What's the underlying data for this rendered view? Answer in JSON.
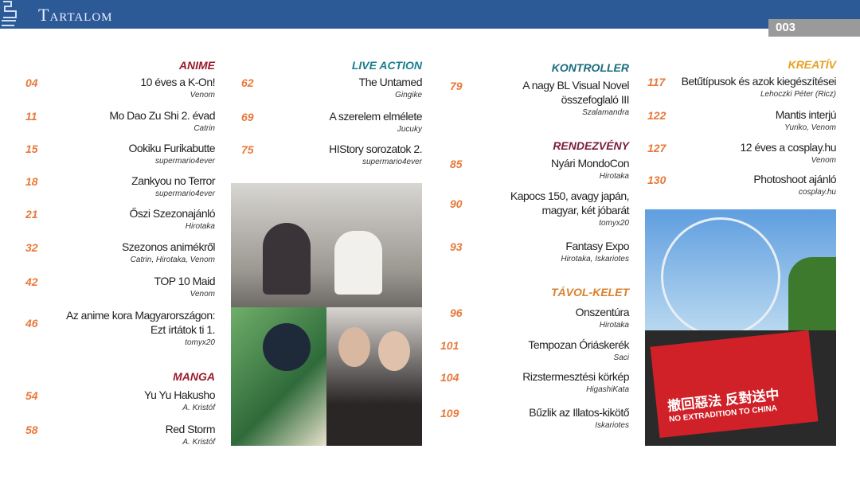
{
  "header": {
    "title": "Tartalom",
    "page": "003",
    "color": "#2b5a97"
  },
  "colors": {
    "number": "#e8793a",
    "anime": "#9b1c2e",
    "manga": "#9b1c2e",
    "live_action": "#1a7f8e",
    "kontroller": "#1a6c7c",
    "rendezveny": "#7a1d3a",
    "tavol_kelet": "#d9822b",
    "kreativ": "#e8a020"
  },
  "columns": [
    [
      {
        "section": "ANIME",
        "color": "#9b1c2e"
      },
      {
        "num": "04",
        "title": [
          "10 éves a K-On!"
        ],
        "author": "Venom"
      },
      {
        "num": "11",
        "title": [
          "Mo Dao Zu Shi 2. évad"
        ],
        "author": "Catrin"
      },
      {
        "num": "15",
        "title": [
          "Ookiku Furikabutte"
        ],
        "author": "supermario4ever"
      },
      {
        "num": "18",
        "title": [
          "Zankyou no Terror"
        ],
        "author": "supermario4ever"
      },
      {
        "num": "21",
        "title": [
          "Őszi Szezonajánló"
        ],
        "author": "Hirotaka"
      },
      {
        "num": "32",
        "title": [
          "Szezonos animékről"
        ],
        "author": "Catrin, Hirotaka, Venom"
      },
      {
        "num": "42",
        "title": [
          "TOP 10 Maid"
        ],
        "author": "Venom"
      },
      {
        "num": "46",
        "title": [
          "Az anime kora Magyarországon:",
          "Ezt írtátok ti 1."
        ],
        "author": "tomyx20"
      },
      {
        "section": "MANGA",
        "color": "#9b1c2e"
      },
      {
        "num": "54",
        "title": [
          "Yu Yu Hakusho"
        ],
        "author": "A. Kristóf"
      },
      {
        "num": "58",
        "title": [
          "Red Storm"
        ],
        "author": "A. Kristóf"
      }
    ],
    [
      {
        "section": "LIVE ACTION",
        "color": "#1a7f8e"
      },
      {
        "num": "62",
        "title": [
          "The Untamed"
        ],
        "author": "Gingike"
      },
      {
        "num": "69",
        "title": [
          "A szerelem elmélete"
        ],
        "author": "Jucuky"
      },
      {
        "num": "75",
        "title": [
          "HIStory sorozatok 2."
        ],
        "author": "supermario4ever"
      }
    ],
    [
      {
        "section": "KONTROLLER",
        "color": "#1a6c7c"
      },
      {
        "num": "79",
        "title": [
          "A nagy BL Visual Novel",
          "összefoglaló III"
        ],
        "author": "Szalamandra"
      },
      {
        "section": "RENDEZVÉNY",
        "color": "#7a1d3a"
      },
      {
        "num": "85",
        "title": [
          "Nyári MondoCon"
        ],
        "author": "Hirotaka"
      },
      {
        "num": "90",
        "title": [
          "Kapocs 150, avagy japán,",
          "magyar, két jóbarát"
        ],
        "author": "tomyx20"
      },
      {
        "num": "93",
        "title": [
          "Fantasy Expo"
        ],
        "author": "Hirotaka, Iskariotes"
      },
      {
        "section": "TÁVOL-KELET",
        "color": "#d9822b"
      },
      {
        "num": "96",
        "title": [
          "Onszentúra"
        ],
        "author": "Hirotaka"
      },
      {
        "num": "101",
        "title": [
          "Tempozan Óriáskerék"
        ],
        "author": "Saci"
      },
      {
        "num": "104",
        "title": [
          "Rizstermesztési körkép"
        ],
        "author": "HigashiKata"
      },
      {
        "num": "109",
        "title": [
          "Bűzlik az Illatos-kikötő"
        ],
        "author": "Iskariotes"
      }
    ],
    [
      {
        "section": "KREATÍV",
        "color": "#e8a020"
      },
      {
        "num": "117",
        "title": [
          "Betűtípusok és azok kiegészítései"
        ],
        "author": "Lehoczki Péter (Ricz)"
      },
      {
        "num": "122",
        "title": [
          "Mantis interjú"
        ],
        "author": "Yuriko, Venom"
      },
      {
        "num": "127",
        "title": [
          "12 éves a cosplay.hu"
        ],
        "author": "Venom"
      },
      {
        "num": "130",
        "title": [
          "Photoshoot ajánló"
        ],
        "author": "cosplay.hu"
      }
    ]
  ],
  "images": {
    "protest_sign": "撤回惡法 反對送中",
    "protest_banner": "NO EXTRADITION TO CHINA"
  }
}
